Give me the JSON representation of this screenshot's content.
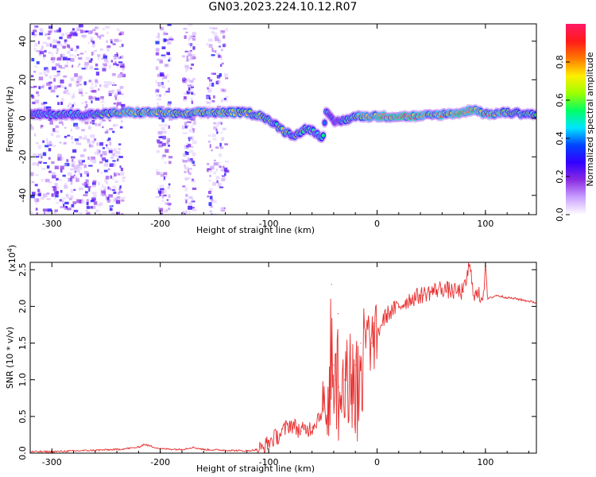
{
  "figure": {
    "title": "GN03.2023.224.10.12.R07"
  },
  "chart_data": [
    {
      "id": "spectrogram",
      "type": "heatmap",
      "xlabel": "Height of straight line (km)",
      "ylabel": "Frequency (Hz)",
      "xlim": [
        -320,
        147
      ],
      "ylim": [
        -50,
        49
      ],
      "xticks": [
        -300,
        -200,
        -100,
        0,
        100
      ],
      "yticks": [
        -40,
        -20,
        0,
        20,
        40
      ],
      "xtick_labels": [
        "-300",
        "-200",
        "-100",
        "0",
        "100"
      ],
      "ytick_labels": [
        "-40",
        "-20",
        "0",
        "20",
        "40"
      ],
      "colorbar": {
        "label": "Normalized spectral amplitude",
        "range": [
          0,
          1
        ],
        "ticks": [
          0.0,
          0.2,
          0.4,
          0.6,
          0.8
        ],
        "tick_labels": [
          "0.0",
          "0.2",
          "0.4",
          "0.6",
          "0.8"
        ],
        "colors": [
          "#ffffff",
          "#c9a0ff",
          "#8a2be2",
          "#3300ff",
          "#0044ff",
          "#00e5ff",
          "#00ff66",
          "#9dff00",
          "#ffee00",
          "#ff7a00",
          "#ff1a1a",
          "#ff1a66"
        ]
      },
      "ridge": {
        "x": [
          -320,
          -290,
          -260,
          -230,
          -200,
          -180,
          -160,
          -140,
          -120,
          -105,
          -95,
          -85,
          -75,
          -65,
          -55,
          -50,
          -47,
          -40,
          -30,
          -20,
          0,
          20,
          40,
          60,
          80,
          90,
          100,
          120,
          147
        ],
        "y": [
          2,
          2,
          2,
          3,
          3,
          2,
          3,
          3,
          3,
          1,
          -3,
          -7,
          -9,
          -5,
          -8,
          -10,
          3,
          -2,
          -1,
          1,
          1,
          1,
          1,
          2,
          3,
          5,
          2,
          3,
          2
        ],
        "peak_amplitude": [
          0.45,
          0.5,
          0.55,
          0.75,
          0.75,
          0.7,
          0.75,
          0.75,
          0.7,
          0.7,
          0.6,
          0.65,
          0.6,
          0.6,
          0.55,
          0.5,
          0.45,
          0.4,
          0.5,
          0.75,
          0.9,
          0.9,
          0.85,
          0.8,
          0.9,
          0.85,
          0.8,
          0.75,
          0.6
        ]
      },
      "noise_regions_x": [
        [
          -320,
          -235
        ],
        [
          -205,
          -192
        ],
        [
          -180,
          -170
        ],
        [
          -158,
          -140
        ]
      ]
    },
    {
      "id": "snr",
      "type": "line",
      "xlabel": "Height of straight line (km)",
      "ylabel": "SNR (10 * v/v)",
      "exponent_label": "(x10",
      "exponent_sup": "4",
      "exponent_close": ")",
      "xlim": [
        -320,
        147
      ],
      "ylim": [
        0,
        2.6
      ],
      "xticks": [
        -300,
        -200,
        -100,
        0,
        100
      ],
      "yticks": [
        0.0,
        0.5,
        1.0,
        1.5,
        2.0,
        2.5
      ],
      "xtick_labels": [
        "-300",
        "-200",
        "-100",
        "0",
        "100"
      ],
      "ytick_labels": [
        "0.0",
        "0.5",
        "1.0",
        "1.5",
        "2.0",
        "2.5"
      ],
      "color": "#e83030",
      "series": [
        {
          "x": [
            -320,
            -300,
            -280,
            -260,
            -240,
            -220,
            -215,
            -200,
            -180,
            -170,
            -160,
            -140,
            -120,
            -105,
            -100,
            -90,
            -80,
            -70,
            -60,
            -50,
            -45,
            -42,
            -40,
            -38,
            -36,
            -35,
            -30,
            -25,
            -20,
            -15,
            -10,
            -5,
            0,
            5,
            10,
            20,
            30,
            40,
            50,
            60,
            70,
            80,
            85,
            90,
            98,
            100,
            102,
            110,
            120,
            130,
            147
          ],
          "y": [
            0.02,
            0.02,
            0.03,
            0.04,
            0.05,
            0.08,
            0.12,
            0.06,
            0.05,
            0.08,
            0.05,
            0.04,
            0.03,
            0.06,
            0.15,
            0.25,
            0.4,
            0.3,
            0.35,
            0.6,
            0.85,
            2.3,
            1.2,
            1.0,
            1.9,
            0.9,
            1.0,
            1.3,
            1.2,
            1.5,
            1.6,
            1.5,
            1.6,
            1.8,
            1.9,
            2.0,
            2.1,
            2.15,
            2.2,
            2.25,
            2.2,
            2.2,
            2.55,
            2.15,
            2.15,
            2.6,
            2.1,
            2.15,
            2.12,
            2.1,
            2.05
          ]
        }
      ]
    }
  ]
}
